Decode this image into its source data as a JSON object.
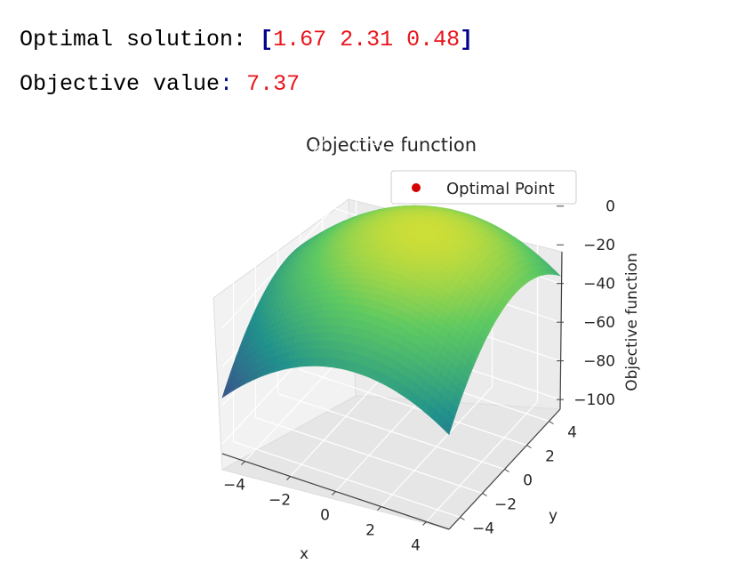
{
  "output": {
    "solution_label": "Optimal solution:",
    "solution_open": "[",
    "solution_values": "1.67 2.31 0.48",
    "solution_close": "]",
    "objective_label": "Objective value",
    "objective_colon": ":",
    "objective_value": "7.37"
  },
  "colors": {
    "text": "#000000",
    "bracket": "#00008b",
    "number": "#e8141b",
    "marker": "#d40000",
    "colormap": [
      "#440154",
      "#3b528b",
      "#21918c",
      "#5ec962",
      "#fde725"
    ]
  },
  "chart_data": {
    "type": "surface3d",
    "title": "Objective function",
    "xlabel": "x",
    "ylabel": "y",
    "zlabel": "Objective function",
    "xlim": [
      -5,
      5
    ],
    "ylim": [
      -5,
      5
    ],
    "zlim": [
      -105,
      10
    ],
    "x_ticks": [
      -4,
      -2,
      0,
      2,
      4
    ],
    "y_ticks": [
      -4,
      -2,
      0,
      2,
      4
    ],
    "z_ticks": [
      0,
      -20,
      -40,
      -60,
      -80,
      -100
    ],
    "x_tick_labels": [
      "−4",
      "−2",
      "0",
      "2",
      "4"
    ],
    "y_tick_labels": [
      "−4",
      "−2",
      "0",
      "2",
      "4"
    ],
    "z_tick_labels": [
      "0",
      "−20",
      "−40",
      "−60",
      "−80",
      "−100"
    ],
    "colormap": "viridis",
    "grid": true,
    "surface": {
      "expression": "-(x^2 + y^2 + 3^2) + 2x + 2y + 3",
      "x_range": [
        -5,
        5
      ],
      "y_range": [
        -5,
        5
      ],
      "samples": 40
    },
    "optimal_point": {
      "x": 1.67,
      "y": 2.31,
      "z": 7.37
    },
    "legend": {
      "entries": [
        "Optimal Point"
      ],
      "position": "upper-right"
    }
  }
}
